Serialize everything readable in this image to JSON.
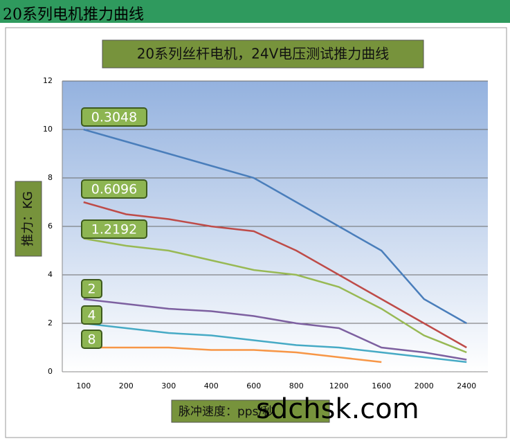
{
  "header": "20系列电机推力曲线",
  "chart_data": {
    "type": "line",
    "title": "20系列丝杆电机，24V电压测试推力曲线",
    "y_label": "推力：KG",
    "x_label": "脉冲速度：pps/秒",
    "watermark": "sdchsk.com",
    "categories": [
      "100",
      "200",
      "300",
      "400",
      "600",
      "800",
      "1200",
      "1600",
      "2000",
      "2400"
    ],
    "ylim": [
      0,
      12
    ],
    "yticks": [
      0,
      2,
      4,
      6,
      8,
      10,
      12
    ],
    "grid": true,
    "series": [
      {
        "name": "0.3048",
        "color": "#4a7ebb",
        "values": [
          10,
          9.5,
          9.0,
          8.5,
          8.0,
          7.0,
          6.0,
          5.0,
          3.0,
          2.0
        ]
      },
      {
        "name": "0.6096",
        "color": "#be4b48",
        "values": [
          7.0,
          6.5,
          6.3,
          6.0,
          5.8,
          5.0,
          4.0,
          3.0,
          2.0,
          1.0
        ]
      },
      {
        "name": "1.2192",
        "color": "#98b954",
        "values": [
          5.5,
          5.2,
          5.0,
          4.6,
          4.2,
          4.0,
          3.5,
          2.6,
          1.5,
          0.8
        ]
      },
      {
        "name": "2",
        "color": "#7d60a0",
        "values": [
          3.0,
          2.8,
          2.6,
          2.5,
          2.3,
          2.0,
          1.8,
          1.0,
          0.8,
          0.5
        ]
      },
      {
        "name": "4",
        "color": "#46aac5",
        "values": [
          2.0,
          1.8,
          1.6,
          1.5,
          1.3,
          1.1,
          1.0,
          0.8,
          0.6,
          0.4
        ]
      },
      {
        "name": "8",
        "color": "#f79646",
        "values": [
          1.0,
          1.0,
          1.0,
          0.9,
          0.9,
          0.8,
          0.6,
          0.4,
          null,
          null
        ]
      }
    ]
  }
}
